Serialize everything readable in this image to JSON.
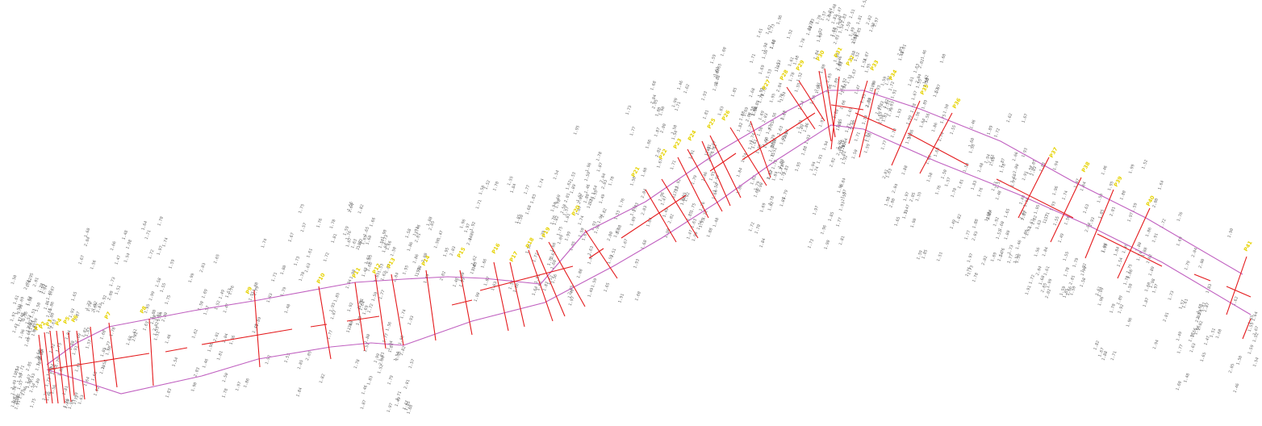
{
  "colors": {
    "background": "#ffffff",
    "boundary": "#c060c0",
    "section_line": "#e41a1c",
    "station_label": "#e6d200",
    "point_label": "#6b6b6b"
  },
  "station_labels": [
    "P1",
    "P2",
    "P3",
    "P4",
    "P5",
    "P6",
    "P7",
    "P8",
    "P9",
    "P10",
    "P11",
    "P12",
    "P13",
    "P14",
    "P15",
    "P16",
    "P17",
    "P18",
    "P19",
    "P20",
    "P21",
    "P22",
    "P23",
    "P24",
    "P25",
    "P26",
    "P27",
    "P28",
    "P29",
    "P30",
    "P31",
    "P32",
    "P33",
    "P34",
    "P35",
    "P36",
    "P37",
    "P38",
    "P39",
    "P40",
    "P41",
    "P42",
    "P43",
    "P44",
    "P45",
    "P46",
    "P47"
  ],
  "point_labels": [
    "1.46",
    "1.47",
    "1.48",
    "1.49",
    "1.50",
    "1.51",
    "1.52",
    "1.53",
    "1.54",
    "1.55",
    "1.56",
    "1.57",
    "1.58",
    "1.59",
    "1.60",
    "1.61",
    "1.62",
    "1.63",
    "1.64",
    "1.65",
    "1.66",
    "1.67",
    "1.68",
    "1.69",
    "1.70",
    "1.71",
    "1.72",
    "1.73",
    "1.74",
    "1.75",
    "1.76",
    "1.77",
    "1.78",
    "1.79",
    "1.80",
    "1.81",
    "1.82",
    "1.83",
    "1.84",
    "1.85",
    "1.86",
    "1.87",
    "1.88",
    "1.89",
    "1.90",
    "1.91",
    "1.92",
    "1.93",
    "1.94",
    "1.95",
    "1.96",
    "1.97",
    "1.98",
    "1.99",
    "2.00",
    "2.01",
    "2.02",
    "2.03",
    "2.04",
    "2.05"
  ]
}
